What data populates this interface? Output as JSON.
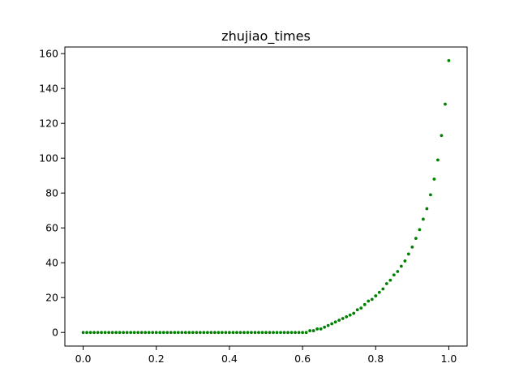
{
  "chart_data": {
    "type": "scatter",
    "title": "zhujiao_times",
    "xlabel": "",
    "ylabel": "",
    "xlim": [
      -0.05,
      1.05
    ],
    "ylim": [
      -7.8,
      163.8
    ],
    "xticks": [
      0.0,
      0.2,
      0.4,
      0.6,
      0.8,
      1.0
    ],
    "xtick_labels": [
      "0.0",
      "0.2",
      "0.4",
      "0.6",
      "0.8",
      "1.0"
    ],
    "yticks": [
      0,
      20,
      40,
      60,
      80,
      100,
      120,
      140,
      160
    ],
    "ytick_labels": [
      "0",
      "20",
      "40",
      "60",
      "80",
      "100",
      "120",
      "140",
      "160"
    ],
    "grid": false,
    "legend": "none",
    "point_color": "#008000",
    "series": [
      {
        "x": [
          0.0,
          0.01,
          0.02,
          0.03,
          0.04,
          0.05,
          0.06,
          0.07,
          0.08,
          0.09,
          0.1,
          0.11,
          0.12,
          0.13,
          0.14,
          0.15,
          0.16,
          0.17,
          0.18,
          0.19,
          0.2,
          0.21,
          0.22,
          0.23,
          0.24,
          0.25,
          0.26,
          0.27,
          0.28,
          0.29,
          0.3,
          0.31,
          0.32,
          0.33,
          0.34,
          0.35,
          0.36,
          0.37,
          0.38,
          0.39,
          0.4,
          0.41,
          0.42,
          0.43,
          0.44,
          0.45,
          0.46,
          0.47,
          0.48,
          0.49,
          0.5,
          0.51,
          0.52,
          0.53,
          0.54,
          0.55,
          0.56,
          0.57,
          0.58,
          0.59,
          0.6,
          0.61,
          0.62,
          0.63,
          0.64,
          0.65,
          0.66,
          0.67,
          0.68,
          0.69,
          0.7,
          0.71,
          0.72,
          0.73,
          0.74,
          0.75,
          0.76,
          0.77,
          0.78,
          0.79,
          0.8,
          0.81,
          0.82,
          0.83,
          0.84,
          0.85,
          0.86,
          0.87,
          0.88,
          0.89,
          0.9,
          0.91,
          0.92,
          0.93,
          0.94,
          0.95,
          0.96,
          0.97,
          0.98,
          0.99,
          1.0
        ],
        "y": [
          0,
          0,
          0,
          0,
          0,
          0,
          0,
          0,
          0,
          0,
          0,
          0,
          0,
          0,
          0,
          0,
          0,
          0,
          0,
          0,
          0,
          0,
          0,
          0,
          0,
          0,
          0,
          0,
          0,
          0,
          0,
          0,
          0,
          0,
          0,
          0,
          0,
          0,
          0,
          0,
          0,
          0,
          0,
          0,
          0,
          0,
          0,
          0,
          0,
          0,
          0,
          0,
          0,
          0,
          0,
          0,
          0,
          0,
          0,
          0,
          0,
          0,
          1,
          1,
          2,
          2,
          3,
          4,
          5,
          6,
          7,
          8,
          9,
          10,
          11,
          13,
          14,
          16,
          18,
          19,
          21,
          23,
          25,
          28,
          30,
          33,
          35,
          38,
          41,
          45,
          49,
          54,
          59,
          65,
          71,
          79,
          88,
          99,
          113,
          131,
          156
        ]
      }
    ]
  }
}
